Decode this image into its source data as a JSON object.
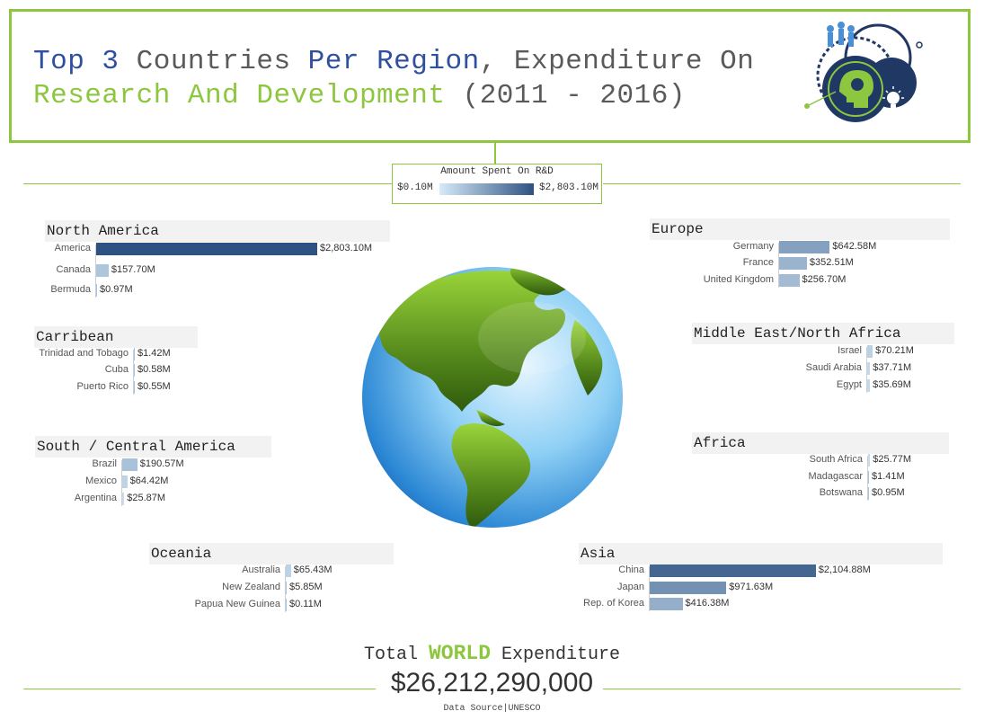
{
  "title": {
    "part1": "Top 3",
    "part2": " Countries ",
    "part3": "Per Region",
    "part4": ", Expenditure On",
    "part5": "Research And Development",
    "part6": " (2011 - 2016)"
  },
  "legend": {
    "title": "Amount Spent On R&D",
    "min_label": "$0.10M",
    "max_label": "$2,803.10M",
    "min_color": "#d6eaf8",
    "max_color": "#2e5281"
  },
  "chart_data": {
    "type": "bar",
    "orientation": "horizontal",
    "unit": "$M",
    "color_scale": {
      "min": 0.1,
      "max": 2803.1
    },
    "regions": [
      {
        "id": "north-america",
        "name": "North America",
        "countries": [
          {
            "name": "America",
            "value": 2803.1,
            "label": "$2,803.10M"
          },
          {
            "name": "Canada",
            "value": 157.7,
            "label": "$157.70M"
          },
          {
            "name": "Bermuda",
            "value": 0.97,
            "label": "$0.97M"
          }
        ]
      },
      {
        "id": "europe",
        "name": "Europe",
        "countries": [
          {
            "name": "Germany",
            "value": 642.58,
            "label": "$642.58M"
          },
          {
            "name": "France",
            "value": 352.51,
            "label": "$352.51M"
          },
          {
            "name": "United Kingdom",
            "value": 256.7,
            "label": "$256.70M"
          }
        ]
      },
      {
        "id": "carribean",
        "name": "Carribean",
        "countries": [
          {
            "name": "Trinidad and Tobago",
            "value": 1.42,
            "label": "$1.42M"
          },
          {
            "name": "Cuba",
            "value": 0.58,
            "label": "$0.58M"
          },
          {
            "name": "Puerto Rico",
            "value": 0.55,
            "label": "$0.55M"
          }
        ]
      },
      {
        "id": "middle-east",
        "name": "Middle East/North Africa",
        "countries": [
          {
            "name": "Israel",
            "value": 70.21,
            "label": "$70.21M"
          },
          {
            "name": "Saudi Arabia",
            "value": 37.71,
            "label": "$37.71M"
          },
          {
            "name": "Egypt",
            "value": 35.69,
            "label": "$35.69M"
          }
        ]
      },
      {
        "id": "south-america",
        "name": "South / Central America",
        "countries": [
          {
            "name": "Brazil",
            "value": 190.57,
            "label": "$190.57M"
          },
          {
            "name": "Mexico",
            "value": 64.42,
            "label": "$64.42M"
          },
          {
            "name": "Argentina",
            "value": 25.87,
            "label": "$25.87M"
          }
        ]
      },
      {
        "id": "africa",
        "name": "Africa",
        "countries": [
          {
            "name": "South Africa",
            "value": 25.77,
            "label": "$25.77M"
          },
          {
            "name": "Madagascar",
            "value": 1.41,
            "label": "$1.41M"
          },
          {
            "name": "Botswana",
            "value": 0.95,
            "label": "$0.95M"
          }
        ]
      },
      {
        "id": "oceania",
        "name": "Oceania",
        "countries": [
          {
            "name": "Australia",
            "value": 65.43,
            "label": "$65.43M"
          },
          {
            "name": "New Zealand",
            "value": 5.85,
            "label": "$5.85M"
          },
          {
            "name": "Papua New Guinea",
            "value": 0.11,
            "label": "$0.11M"
          }
        ]
      },
      {
        "id": "asia",
        "name": "Asia",
        "countries": [
          {
            "name": "China",
            "value": 2104.88,
            "label": "$2,104.88M"
          },
          {
            "name": "Japan",
            "value": 971.63,
            "label": "$971.63M"
          },
          {
            "name": "Rep. of Korea",
            "value": 416.38,
            "label": "$416.38M"
          }
        ]
      }
    ]
  },
  "total": {
    "label_before": "Total ",
    "label_world": "WORLD",
    "label_after": " Expenditure",
    "value": "$26,212,290,000"
  },
  "source": "Data Source|UNESCO",
  "colors": {
    "accent_green": "#8dc63f",
    "title_blue": "#2f4f9f",
    "navy": "#1f3864"
  }
}
